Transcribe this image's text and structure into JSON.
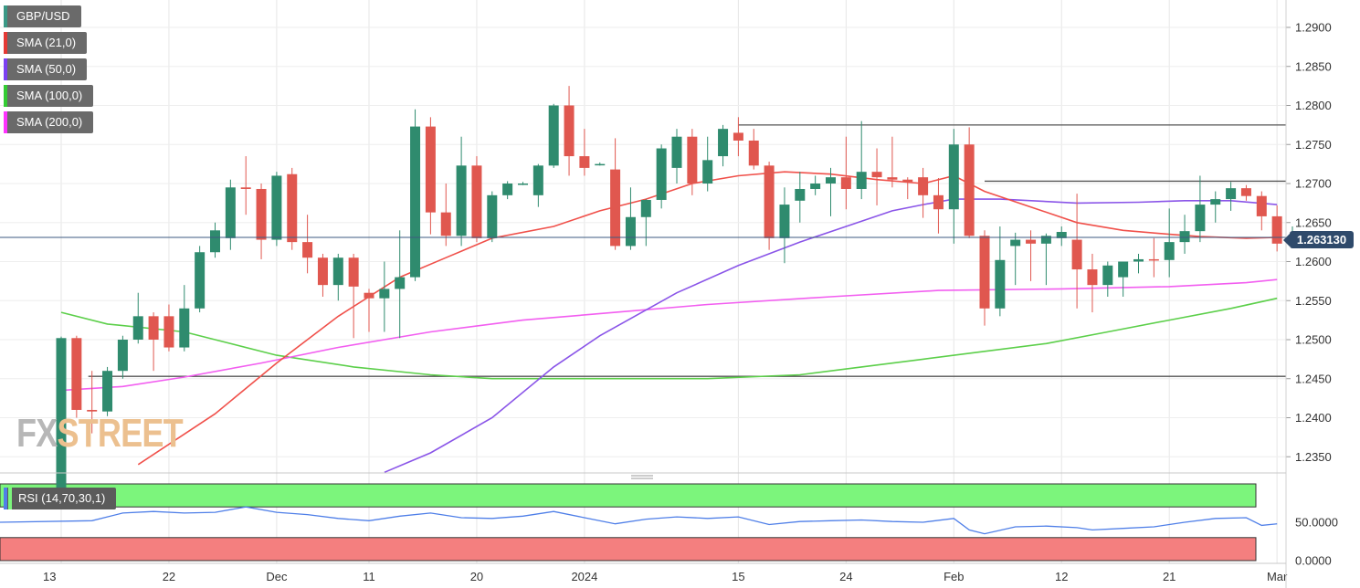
{
  "legend": [
    {
      "label": "GBP/USD",
      "color": "#3a9986"
    },
    {
      "label": "SMA (21,0)",
      "color": "#e53935"
    },
    {
      "label": "SMA (50,0)",
      "color": "#7b3ff2"
    },
    {
      "label": "SMA (100,0)",
      "color": "#33cc33"
    },
    {
      "label": "SMA (200,0)",
      "color": "#ff33ff"
    }
  ],
  "watermark": {
    "part1": "FX",
    "part2": "STREET"
  },
  "last_price": "1.263130",
  "rsi_label": "RSI (14,70,30,1)",
  "rsi_axis": [
    "50.0000",
    "0.0000"
  ],
  "colors": {
    "up": "#2f8b6e",
    "down": "#e0574f",
    "sma21": "#f0504a",
    "sma50": "#8a55e8",
    "sma100": "#5ccf4a",
    "sma200": "#f25ef0",
    "rsi": "#4f7fe8",
    "overbought": "#7cf57c",
    "oversold": "#f47f7f",
    "level": "#555555",
    "lastline": "#3d5a80"
  },
  "chart_data": {
    "type": "candlestick",
    "title": "",
    "ylim": [
      1.233,
      1.292
    ],
    "y_ticks": [
      "1.2900",
      "1.2850",
      "1.2800",
      "1.2750",
      "1.2700",
      "1.2650",
      "1.2600",
      "1.2550",
      "1.2500",
      "1.2450",
      "1.2400",
      "1.2350"
    ],
    "x_ticks": [
      {
        "label": "13",
        "index": 0
      },
      {
        "label": "22",
        "index": 7
      },
      {
        "label": "Dec",
        "index": 14
      },
      {
        "label": "11",
        "index": 20
      },
      {
        "label": "20",
        "index": 27
      },
      {
        "label": "2024",
        "index": 34
      },
      {
        "label": "15",
        "index": 44
      },
      {
        "label": "24",
        "index": 51
      },
      {
        "label": "Feb",
        "index": 58
      },
      {
        "label": "12",
        "index": 65
      },
      {
        "label": "21",
        "index": 72
      },
      {
        "label": "Mar",
        "index": 79
      }
    ],
    "last_value": 1.2631,
    "levels": [
      {
        "value": 1.2775,
        "from_index": 44,
        "to_index": 80
      },
      {
        "value": 1.2703,
        "from_index": 60,
        "to_index": 80
      },
      {
        "value": 1.2453,
        "from_index": 2,
        "to_index": 80
      }
    ],
    "candles": [
      [
        1.2302,
        1.2504,
        1.229,
        1.2502
      ],
      [
        1.2502,
        1.2505,
        1.24,
        1.241
      ],
      [
        1.241,
        1.246,
        1.238,
        1.2408
      ],
      [
        1.2408,
        1.2465,
        1.2402,
        1.246
      ],
      [
        1.246,
        1.2505,
        1.245,
        1.25
      ],
      [
        1.25,
        1.256,
        1.2495,
        1.253
      ],
      [
        1.253,
        1.2535,
        1.246,
        1.25
      ],
      [
        1.253,
        1.2545,
        1.2485,
        1.249
      ],
      [
        1.249,
        1.257,
        1.2485,
        1.254
      ],
      [
        1.254,
        1.262,
        1.2535,
        1.2612
      ],
      [
        1.2612,
        1.265,
        1.2605,
        1.264
      ],
      [
        1.263,
        1.2705,
        1.2615,
        1.2695
      ],
      [
        1.2695,
        1.2735,
        1.266,
        1.2693
      ],
      [
        1.2693,
        1.27,
        1.2603,
        1.2628
      ],
      [
        1.2628,
        1.2715,
        1.262,
        1.271
      ],
      [
        1.2712,
        1.272,
        1.2615,
        1.2625
      ],
      [
        1.2625,
        1.266,
        1.2585,
        1.2605
      ],
      [
        1.2605,
        1.261,
        1.2555,
        1.257
      ],
      [
        1.257,
        1.261,
        1.255,
        1.2605
      ],
      [
        1.2605,
        1.261,
        1.2502,
        1.2568
      ],
      [
        1.256,
        1.2565,
        1.251,
        1.2553
      ],
      [
        1.2553,
        1.26,
        1.251,
        1.2565
      ],
      [
        1.2565,
        1.264,
        1.2502,
        1.258
      ],
      [
        1.258,
        1.2795,
        1.2575,
        1.2773
      ],
      [
        1.2773,
        1.2785,
        1.2635,
        1.2663
      ],
      [
        1.2663,
        1.27,
        1.262,
        1.2633
      ],
      [
        1.2633,
        1.276,
        1.262,
        1.2723
      ],
      [
        1.2723,
        1.2735,
        1.2625,
        1.263
      ],
      [
        1.263,
        1.269,
        1.2625,
        1.2685
      ],
      [
        1.2685,
        1.2703,
        1.268,
        1.27
      ],
      [
        1.27,
        1.2702,
        1.2698,
        1.27
      ],
      [
        1.2685,
        1.2725,
        1.267,
        1.2723
      ],
      [
        1.2723,
        1.2802,
        1.272,
        1.28
      ],
      [
        1.28,
        1.2825,
        1.271,
        1.2735
      ],
      [
        1.2735,
        1.277,
        1.271,
        1.272
      ],
      [
        1.2725,
        1.2727,
        1.2723,
        1.2725
      ],
      [
        1.2718,
        1.2758,
        1.2615,
        1.262
      ],
      [
        1.262,
        1.2695,
        1.2615,
        1.2657
      ],
      [
        1.2657,
        1.268,
        1.262,
        1.2679
      ],
      [
        1.2679,
        1.275,
        1.2668,
        1.2745
      ],
      [
        1.272,
        1.277,
        1.27,
        1.276
      ],
      [
        1.276,
        1.277,
        1.2685,
        1.27
      ],
      [
        1.27,
        1.276,
        1.269,
        1.273
      ],
      [
        1.2735,
        1.2775,
        1.2722,
        1.277
      ],
      [
        1.2765,
        1.2785,
        1.2735,
        1.2755
      ],
      [
        1.2755,
        1.277,
        1.2718,
        1.2723
      ],
      [
        1.2723,
        1.2728,
        1.2615,
        1.263
      ],
      [
        1.263,
        1.2695,
        1.2598,
        1.2673
      ],
      [
        1.2678,
        1.2715,
        1.265,
        1.2693
      ],
      [
        1.2693,
        1.271,
        1.2685,
        1.27
      ],
      [
        1.27,
        1.272,
        1.2658,
        1.2708
      ],
      [
        1.2708,
        1.276,
        1.2667,
        1.2693
      ],
      [
        1.2693,
        1.278,
        1.268,
        1.2715
      ],
      [
        1.2715,
        1.2745,
        1.2672,
        1.2708
      ],
      [
        1.2708,
        1.276,
        1.2695,
        1.2705
      ],
      [
        1.2705,
        1.2708,
        1.268,
        1.2702
      ],
      [
        1.2708,
        1.272,
        1.2656,
        1.2685
      ],
      [
        1.2685,
        1.2707,
        1.2636,
        1.2667
      ],
      [
        1.2667,
        1.277,
        1.2623,
        1.275
      ],
      [
        1.275,
        1.2772,
        1.263,
        1.2633
      ],
      [
        1.2633,
        1.264,
        1.2518,
        1.254
      ],
      [
        1.254,
        1.2645,
        1.253,
        1.2602
      ],
      [
        1.262,
        1.2637,
        1.257,
        1.2628
      ],
      [
        1.2628,
        1.264,
        1.2575,
        1.2623
      ],
      [
        1.2623,
        1.2636,
        1.257,
        1.2633
      ],
      [
        1.263,
        1.2645,
        1.262,
        1.2638
      ],
      [
        1.2628,
        1.2687,
        1.254,
        1.259
      ],
      [
        1.259,
        1.261,
        1.2535,
        1.257
      ],
      [
        1.257,
        1.26,
        1.2555,
        1.2595
      ],
      [
        1.258,
        1.26,
        1.2555,
        1.26
      ],
      [
        1.26,
        1.261,
        1.2585,
        1.2603
      ],
      [
        1.2603,
        1.263,
        1.258,
        1.2602
      ],
      [
        1.2602,
        1.2668,
        1.258,
        1.2625
      ],
      [
        1.2625,
        1.266,
        1.261,
        1.2639
      ],
      [
        1.2639,
        1.271,
        1.2625,
        1.2673
      ],
      [
        1.2673,
        1.269,
        1.265,
        1.268
      ],
      [
        1.268,
        1.2702,
        1.2665,
        1.2694
      ],
      [
        1.2694,
        1.2698,
        1.2678,
        1.2684
      ],
      [
        1.2684,
        1.269,
        1.264,
        1.2658
      ],
      [
        1.2658,
        1.2672,
        1.2613,
        1.2623
      ],
      [
        1.2623,
        1.2645,
        1.2618,
        1.2631
      ]
    ],
    "sma21": [
      [
        5,
        1.234
      ],
      [
        10,
        1.2405
      ],
      [
        14,
        1.247
      ],
      [
        18,
        1.253
      ],
      [
        22,
        1.258
      ],
      [
        25,
        1.2605
      ],
      [
        28,
        1.263
      ],
      [
        32,
        1.2645
      ],
      [
        35,
        1.2665
      ],
      [
        38,
        1.268
      ],
      [
        41,
        1.27
      ],
      [
        44,
        1.271
      ],
      [
        47,
        1.2715
      ],
      [
        50,
        1.2712
      ],
      [
        53,
        1.2705
      ],
      [
        56,
        1.27
      ],
      [
        58,
        1.271
      ],
      [
        60,
        1.269
      ],
      [
        63,
        1.267
      ],
      [
        66,
        1.265
      ],
      [
        69,
        1.264
      ],
      [
        72,
        1.2635
      ],
      [
        74,
        1.2632
      ],
      [
        77,
        1.263
      ],
      [
        79,
        1.2631
      ]
    ],
    "sma50": [
      [
        21,
        1.233
      ],
      [
        24,
        1.2355
      ],
      [
        28,
        1.24
      ],
      [
        32,
        1.2465
      ],
      [
        35,
        1.2505
      ],
      [
        40,
        1.256
      ],
      [
        44,
        1.2595
      ],
      [
        48,
        1.2625
      ],
      [
        51,
        1.2645
      ],
      [
        54,
        1.2665
      ],
      [
        56,
        1.2673
      ],
      [
        58,
        1.268
      ],
      [
        61,
        1.268
      ],
      [
        66,
        1.2675
      ],
      [
        70,
        1.2676
      ],
      [
        73,
        1.2678
      ],
      [
        76,
        1.2678
      ],
      [
        79,
        1.2673
      ]
    ],
    "sma100": [
      [
        0,
        1.2535
      ],
      [
        3,
        1.252
      ],
      [
        8,
        1.251
      ],
      [
        14,
        1.248
      ],
      [
        19,
        1.2465
      ],
      [
        24,
        1.2455
      ],
      [
        28,
        1.245
      ],
      [
        34,
        1.245
      ],
      [
        42,
        1.245
      ],
      [
        48,
        1.2455
      ],
      [
        52,
        1.2465
      ],
      [
        56,
        1.2475
      ],
      [
        60,
        1.2485
      ],
      [
        64,
        1.2495
      ],
      [
        68,
        1.251
      ],
      [
        72,
        1.2525
      ],
      [
        76,
        1.254
      ],
      [
        79,
        1.2553
      ]
    ],
    "sma200": [
      [
        0,
        1.2435
      ],
      [
        4,
        1.244
      ],
      [
        8,
        1.2452
      ],
      [
        13,
        1.247
      ],
      [
        18,
        1.249
      ],
      [
        24,
        1.251
      ],
      [
        30,
        1.2525
      ],
      [
        36,
        1.2535
      ],
      [
        42,
        1.2545
      ],
      [
        50,
        1.2555
      ],
      [
        57,
        1.2563
      ],
      [
        65,
        1.2565
      ],
      [
        72,
        1.2568
      ],
      [
        77,
        1.2573
      ],
      [
        79,
        1.2577
      ]
    ],
    "rsi": {
      "label": "RSI (14,70,30,1)",
      "ylim": [
        0,
        100
      ],
      "overbought": 70,
      "oversold": 30,
      "values": [
        [
          0,
          50
        ],
        [
          2,
          52
        ],
        [
          4,
          62
        ],
        [
          6,
          64
        ],
        [
          8,
          62
        ],
        [
          10,
          63
        ],
        [
          12,
          70
        ],
        [
          14,
          63
        ],
        [
          16,
          60
        ],
        [
          18,
          55
        ],
        [
          20,
          52
        ],
        [
          22,
          58
        ],
        [
          24,
          62
        ],
        [
          26,
          56
        ],
        [
          28,
          55
        ],
        [
          30,
          58
        ],
        [
          32,
          64
        ],
        [
          34,
          56
        ],
        [
          36,
          48
        ],
        [
          38,
          54
        ],
        [
          40,
          57
        ],
        [
          42,
          55
        ],
        [
          44,
          57
        ],
        [
          46,
          47
        ],
        [
          48,
          51
        ],
        [
          50,
          52
        ],
        [
          52,
          53
        ],
        [
          54,
          51
        ],
        [
          56,
          50
        ],
        [
          58,
          55
        ],
        [
          59,
          40
        ],
        [
          60,
          35
        ],
        [
          62,
          44
        ],
        [
          64,
          45
        ],
        [
          66,
          43
        ],
        [
          67,
          40
        ],
        [
          69,
          42
        ],
        [
          71,
          44
        ],
        [
          73,
          50
        ],
        [
          75,
          55
        ],
        [
          77,
          56
        ],
        [
          78,
          46
        ],
        [
          79,
          48
        ]
      ]
    }
  }
}
